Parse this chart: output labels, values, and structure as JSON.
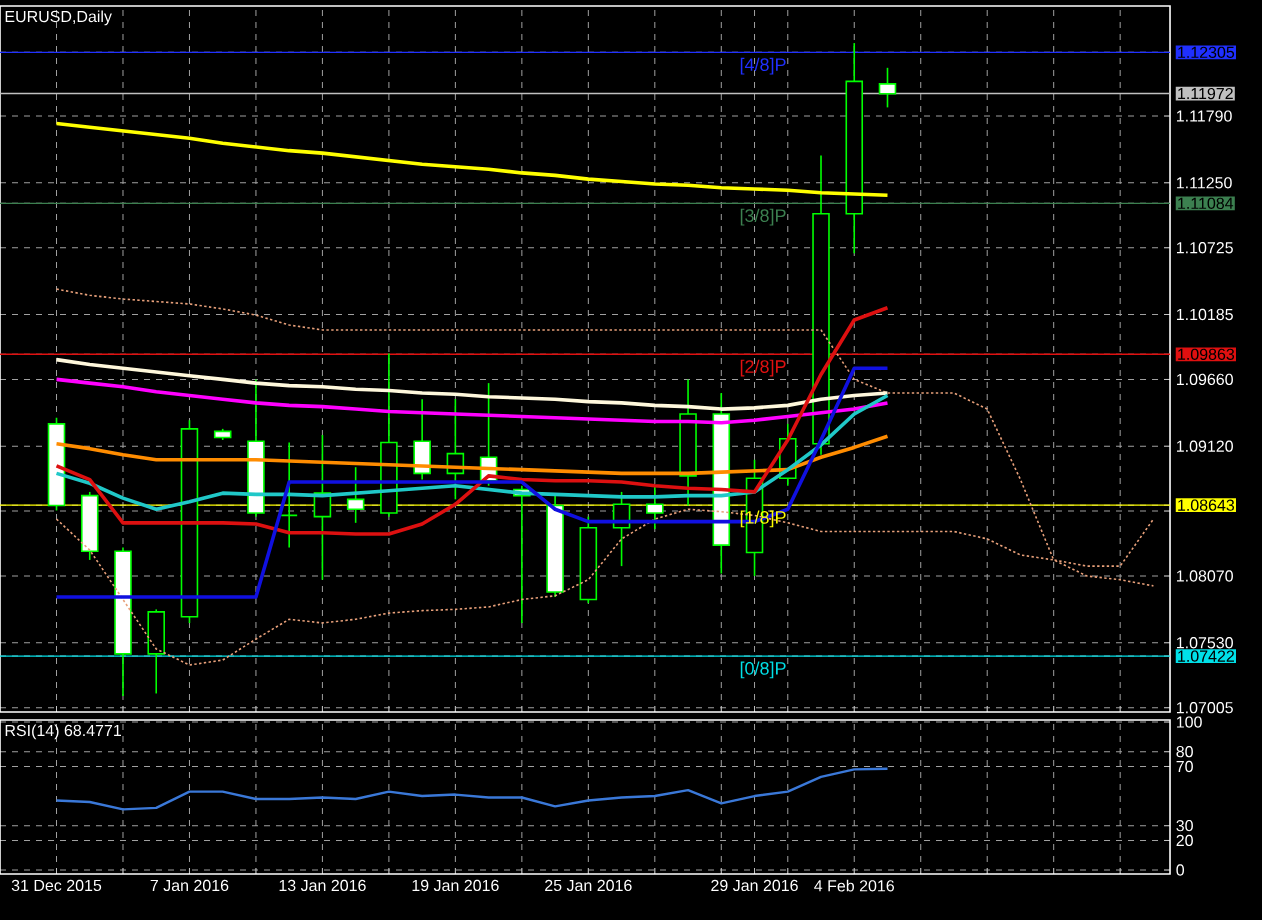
{
  "chart_data": [
    {
      "type": "candlestick",
      "title": "EURUSD,Daily",
      "categories": [
        null,
        null,
        null,
        null,
        null,
        null,
        null,
        null,
        null,
        null,
        null,
        null,
        null,
        null,
        null,
        null,
        null,
        null,
        null,
        null,
        null,
        null,
        null,
        null,
        null,
        null,
        null,
        null,
        null,
        null,
        null,
        null,
        null,
        null
      ],
      "ohlc": [
        [
          1.093,
          1.0935,
          1.086,
          1.0864
        ],
        [
          1.0872,
          1.0875,
          1.082,
          1.0827
        ],
        [
          1.0827,
          1.083,
          1.071,
          1.0744
        ],
        [
          1.0744,
          1.078,
          1.0712,
          1.0778
        ],
        [
          1.0774,
          1.0933,
          1.0769,
          1.0926
        ],
        [
          1.0924,
          1.0926,
          1.0917,
          1.0919
        ],
        [
          1.0916,
          1.0966,
          1.0855,
          1.0858
        ],
        [
          1.0856,
          1.0915,
          1.083,
          1.0856
        ],
        [
          1.0855,
          1.0921,
          1.0804,
          1.0874
        ],
        [
          1.0869,
          1.0895,
          1.085,
          1.0861
        ],
        [
          1.0858,
          1.0987,
          1.0855,
          1.0915
        ],
        [
          1.0916,
          1.095,
          1.0885,
          1.089
        ],
        [
          1.089,
          1.095,
          1.0869,
          1.0906
        ],
        [
          1.0903,
          1.0963,
          1.088,
          1.0884
        ],
        [
          1.0877,
          1.088,
          1.0769,
          1.0872
        ],
        [
          1.0864,
          1.0872,
          1.079,
          1.0794
        ],
        [
          1.0788,
          1.0855,
          1.0785,
          1.0846
        ],
        [
          1.0846,
          1.0875,
          1.0815,
          1.0865
        ],
        [
          1.0865,
          1.088,
          1.0845,
          1.0858
        ],
        [
          1.0888,
          1.0966,
          1.0864,
          1.0938
        ],
        [
          1.0938,
          1.0955,
          1.0809,
          1.0832
        ],
        [
          1.0826,
          1.0901,
          1.0807,
          1.0886
        ],
        [
          1.0886,
          1.093,
          1.088,
          1.0918
        ],
        [
          1.0914,
          1.1147,
          1.0905,
          1.11
        ],
        [
          1.11,
          1.1238,
          1.1068,
          1.1207
        ],
        [
          1.1205,
          1.1218,
          1.1186,
          1.1197
        ],
        null,
        null,
        null,
        null,
        null,
        null,
        null,
        null
      ],
      "color": "#00ff00",
      "colors": [
        "#ffffff",
        "#ffffff",
        "#ffffff",
        "#000000",
        "#000000",
        "#ffffff",
        "#ffffff",
        "#00ff00",
        "#000000",
        "#ffffff",
        "#000000",
        "#ffffff",
        "#000000",
        "#ffffff",
        "#ffffff",
        "#ffffff",
        "#000000",
        "#000000",
        "#ffffff",
        "#000000",
        "#ffffff",
        "#000000",
        "#000000",
        "#000000",
        "#000000",
        "#ffffff",
        null,
        null,
        null,
        null,
        null,
        null,
        null,
        null
      ],
      "series": [
        {
          "type": "line",
          "color": "#e8a07a",
          "line_style": "dotted",
          "values": [
            1.1039,
            1.1034,
            1.1031,
            1.1029,
            1.1027,
            1.1023,
            1.1018,
            1.101,
            1.1006,
            1.1006,
            1.1006,
            1.1006,
            1.1006,
            1.1006,
            1.1006,
            1.1006,
            1.1006,
            1.1006,
            1.1006,
            1.1006,
            1.1006,
            1.1006,
            1.1006,
            1.1006,
            1.0966,
            1.0955,
            1.0955,
            1.0955,
            1.0942,
            1.0885,
            1.082,
            1.0815,
            1.0815,
            1.0853
          ]
        },
        {
          "type": "line",
          "color": "#e8a07a",
          "line_style": "dotted",
          "values": [
            1.0853,
            1.0828,
            1.0788,
            1.0748,
            1.0735,
            1.0739,
            1.0756,
            1.0772,
            1.0769,
            1.0772,
            1.0777,
            1.0779,
            1.078,
            1.0782,
            1.0788,
            1.0791,
            1.0804,
            1.0837,
            1.0853,
            1.0861,
            1.0859,
            1.0856,
            1.085,
            1.0843,
            1.0843,
            1.0843,
            1.0843,
            1.0843,
            1.0837,
            1.0824,
            1.082,
            1.0807,
            1.0804,
            1.0799
          ]
        },
        {
          "type": "line",
          "color": "#ffff00",
          "line_style": "solid",
          "values": [
            1.1173,
            1.117,
            1.1167,
            1.1164,
            1.1161,
            1.1157,
            1.1154,
            1.1151,
            1.1149,
            1.1146,
            1.1143,
            1.114,
            1.1138,
            1.1136,
            1.1133,
            1.1131,
            1.1128,
            1.1126,
            1.1124,
            1.1123,
            1.1121,
            1.112,
            1.1119,
            1.1117,
            1.1116,
            1.1115,
            null,
            null,
            null,
            null,
            null,
            null,
            null,
            null
          ]
        },
        {
          "type": "line",
          "color": "#fff8dc",
          "line_style": "solid",
          "values": [
            1.0982,
            1.0978,
            1.0975,
            1.0972,
            1.0969,
            1.0966,
            1.0963,
            1.0961,
            1.096,
            1.0958,
            1.0957,
            1.0955,
            1.0954,
            1.0952,
            1.0951,
            1.095,
            1.0948,
            1.0947,
            1.0945,
            1.0944,
            1.0942,
            1.0943,
            1.0945,
            1.095,
            1.0953,
            1.0955,
            null,
            null,
            null,
            null,
            null,
            null,
            null,
            null
          ]
        },
        {
          "type": "line",
          "color": "#ff00ff",
          "line_style": "solid",
          "values": [
            1.0966,
            1.0963,
            1.096,
            1.0956,
            1.0953,
            1.095,
            1.0947,
            1.0945,
            1.0944,
            1.0942,
            1.094,
            1.0939,
            1.0938,
            1.0937,
            1.0936,
            1.0935,
            1.0934,
            1.0933,
            1.0932,
            1.0932,
            1.0931,
            1.0933,
            1.0936,
            1.0939,
            1.0942,
            1.0947,
            null,
            null,
            null,
            null,
            null,
            null,
            null,
            null
          ]
        },
        {
          "type": "line",
          "color": "#ff8c00",
          "line_style": "solid",
          "values": [
            1.0914,
            1.091,
            1.0905,
            1.0901,
            1.0901,
            1.0901,
            1.0901,
            1.09,
            1.0899,
            1.0898,
            1.0897,
            1.0896,
            1.0895,
            1.0894,
            1.0893,
            1.0892,
            1.0891,
            1.089,
            1.089,
            1.089,
            1.0891,
            1.0892,
            1.0893,
            1.0903,
            1.0911,
            1.092,
            null,
            null,
            null,
            null,
            null,
            null,
            null,
            null
          ]
        },
        {
          "type": "line",
          "color": "#20c8c8",
          "line_style": "solid",
          "values": [
            1.089,
            1.0882,
            1.087,
            1.0861,
            1.0867,
            1.0874,
            1.0873,
            1.0873,
            1.0872,
            1.0874,
            1.0876,
            1.0878,
            1.088,
            1.0877,
            1.0874,
            1.0873,
            1.0872,
            1.0871,
            1.0871,
            1.0872,
            1.0872,
            1.0875,
            1.0893,
            1.0913,
            1.0938,
            1.0953,
            null,
            null,
            null,
            null,
            null,
            null,
            null,
            null
          ]
        },
        {
          "type": "line",
          "color": "#dd1010",
          "line_style": "solid",
          "values": [
            1.0896,
            1.0885,
            1.085,
            1.085,
            1.085,
            1.085,
            1.0849,
            1.0842,
            1.0842,
            1.0841,
            1.0841,
            1.0849,
            1.0865,
            1.0888,
            1.0885,
            1.0884,
            1.0884,
            1.0883,
            1.088,
            1.0878,
            1.0877,
            1.0875,
            1.0917,
            1.097,
            1.1014,
            1.1024,
            null,
            null,
            null,
            null,
            null,
            null,
            null,
            null
          ]
        },
        {
          "type": "line",
          "color": "#1010e0",
          "line_style": "solid",
          "values": [
            1.079,
            1.079,
            1.079,
            1.079,
            1.079,
            1.079,
            1.079,
            1.0883,
            1.0883,
            1.0883,
            1.0883,
            1.0883,
            1.0883,
            1.0883,
            1.0883,
            1.0861,
            1.0851,
            1.0851,
            1.0851,
            1.0851,
            1.0851,
            1.0851,
            1.0861,
            1.0917,
            1.0975,
            1.0975,
            null,
            null,
            null,
            null,
            null,
            null,
            null,
            null
          ]
        }
      ],
      "ref_lines": [
        {
          "axis": "y",
          "value": 1.12305,
          "label": "[4/8]P",
          "color": "#2030ff"
        },
        {
          "axis": "y",
          "value": 1.11972,
          "color": "#c0c0c0"
        },
        {
          "axis": "y",
          "value": 1.11084,
          "label": "[3/8]P",
          "color": "#3c8050"
        },
        {
          "axis": "y",
          "value": 1.09863,
          "label": "[2/8]P",
          "color": "#e01010"
        },
        {
          "axis": "y",
          "value": 1.08643,
          "label": "[1/8]P",
          "color": "#ffff00"
        },
        {
          "axis": "y",
          "value": 1.07422,
          "label": "[0/8]P",
          "color": "#00e0e8"
        }
      ],
      "ylim": [
        1.0697,
        1.1268
      ],
      "yticks": [
        {
          "value": 1.12305,
          "label": "1.12305"
        },
        {
          "value": 1.11972,
          "label": "1.11972"
        },
        {
          "value": 1.1179,
          "label": "1.11790"
        },
        {
          "value": 1.1125,
          "label": "1.11250"
        },
        {
          "value": 1.11084,
          "label": "1.11084"
        },
        {
          "value": 1.10725,
          "label": "1.10725"
        },
        {
          "value": 1.10185,
          "label": "1.10185"
        },
        {
          "value": 1.09863,
          "label": "1.09863"
        },
        {
          "value": 1.0966,
          "label": "1.09660"
        },
        {
          "value": 1.0912,
          "label": "1.09120"
        },
        {
          "value": 1.08643,
          "label": "1.08643"
        },
        {
          "value": 1.08595,
          "label": null
        },
        {
          "value": 1.0807,
          "label": "1.08070"
        },
        {
          "value": 1.0753,
          "label": "1.07530"
        },
        {
          "value": 1.07422,
          "label": "1.07422"
        },
        {
          "value": 1.07005,
          "label": "1.07005"
        }
      ],
      "grid": true,
      "tick_labels": "y"
    },
    {
      "type": "line",
      "title": "RSI(14) 68.4771",
      "categories": [
        "31 Dec 2015",
        null,
        null,
        null,
        "7 Jan 2016",
        null,
        null,
        null,
        "13 Jan 2016",
        null,
        null,
        null,
        "19 Jan 2016",
        null,
        null,
        null,
        "25 Jan 2016",
        null,
        null,
        null,
        null,
        "29 Jan 2016",
        null,
        null,
        "4 Feb 2016",
        null,
        null,
        null,
        null,
        null,
        null,
        null,
        null,
        null
      ],
      "values": [
        47,
        46,
        41,
        42,
        53,
        53,
        48,
        48,
        49,
        48,
        53,
        50,
        51,
        49,
        49,
        43,
        47,
        49,
        50,
        54,
        45,
        50,
        53,
        63,
        68,
        68.4771,
        null,
        null,
        null,
        null,
        null,
        null,
        null,
        null
      ],
      "color": "#3a78d8",
      "ylim": [
        -2.7,
        101.4
      ],
      "yticks": [
        0,
        20,
        30,
        70,
        80,
        100
      ],
      "grid": true
    }
  ]
}
